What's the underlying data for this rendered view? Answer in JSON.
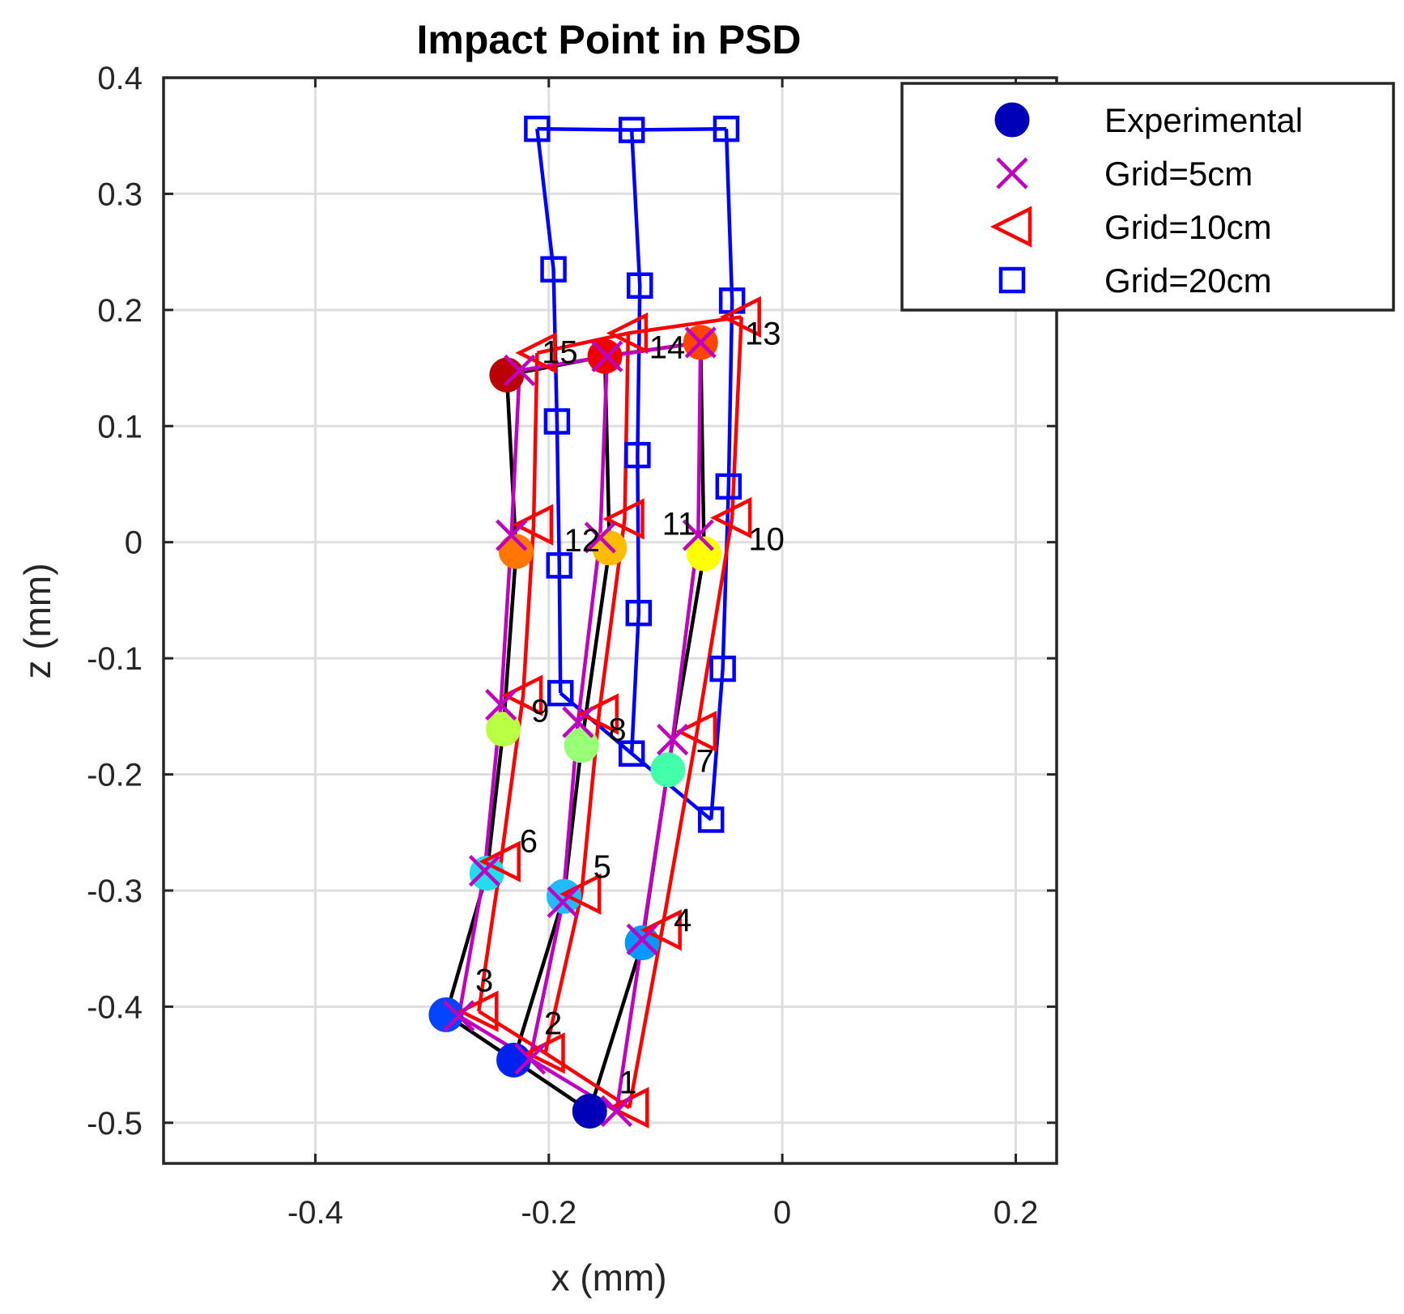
{
  "chart_data": {
    "type": "scatter",
    "title": "Impact Point in PSD",
    "xlabel": "x (mm)",
    "ylabel": "z (mm)",
    "xlim": [
      -0.53,
      0.235
    ],
    "ylim": [
      -0.535,
      0.4
    ],
    "xticks": [
      -0.4,
      -0.2,
      0,
      0.2
    ],
    "xtick_labels": [
      "-0.4",
      "-0.2",
      "0",
      "0.2"
    ],
    "yticks": [
      0.4,
      0.3,
      0.2,
      0.1,
      0,
      -0.1,
      -0.2,
      -0.3,
      -0.4,
      -0.5
    ],
    "ytick_labels": [
      "0.4",
      "0.3",
      "0.2",
      "0.1",
      "0",
      "-0.1",
      "-0.2",
      "-0.3",
      "-0.4",
      "-0.5"
    ],
    "grid": true,
    "legend_position": "outside top-right",
    "legend": [
      "Experimental",
      "Grid=5cm",
      "Grid=10cm",
      "Grid=20cm"
    ],
    "point_labels": [
      "1",
      "2",
      "3",
      "4",
      "5",
      "6",
      "7",
      "8",
      "9",
      "10",
      "11",
      "12",
      "13",
      "14",
      "15"
    ],
    "label_offsets": [
      [
        0.025,
        0.025
      ],
      [
        0.026,
        0.032
      ],
      [
        0.025,
        0.03
      ],
      [
        0.027,
        0.02
      ],
      [
        0.025,
        0.026
      ],
      [
        0.028,
        0.028
      ],
      [
        0.024,
        0.008
      ],
      [
        0.023,
        0.014
      ],
      [
        0.024,
        0.016
      ],
      [
        0.038,
        0.013
      ],
      [
        0.045,
        0.021
      ],
      [
        0.041,
        0.01
      ],
      [
        0.038,
        0.008
      ],
      [
        0.038,
        0.008
      ],
      [
        0.03,
        0.02
      ]
    ],
    "series": [
      {
        "name": "Experimental",
        "marker": "circle",
        "line_color": "#000000",
        "x": [
          -0.165,
          -0.23,
          -0.288,
          -0.12,
          -0.187,
          -0.253,
          -0.098,
          -0.172,
          -0.239,
          -0.067,
          -0.148,
          -0.228,
          -0.07,
          -0.152,
          -0.236
        ],
        "y": [
          -0.49,
          -0.446,
          -0.407,
          -0.345,
          -0.305,
          -0.285,
          -0.196,
          -0.175,
          -0.161,
          -0.01,
          -0.005,
          -0.008,
          0.172,
          0.16,
          0.144
        ],
        "point_colors": [
          "#0000b8",
          "#0022ee",
          "#0044ff",
          "#0099ff",
          "#22bbff",
          "#22ddee",
          "#44ffaa",
          "#99ff77",
          "#bbff44",
          "#ffff00",
          "#ffbb00",
          "#ff7700",
          "#ff4400",
          "#ee0000",
          "#bb0000"
        ]
      },
      {
        "name": "Grid=5cm",
        "marker": "x",
        "color": "#bf00bf",
        "x": [
          -0.142,
          -0.216,
          -0.277,
          -0.12,
          -0.188,
          -0.255,
          -0.094,
          -0.175,
          -0.241,
          -0.072,
          -0.156,
          -0.232,
          -0.07,
          -0.15,
          -0.225
        ],
        "y": [
          -0.49,
          -0.445,
          -0.408,
          -0.342,
          -0.31,
          -0.283,
          -0.17,
          -0.155,
          -0.14,
          0.006,
          0.004,
          0.006,
          0.172,
          0.16,
          0.148
        ]
      },
      {
        "name": "Grid=10cm",
        "marker": "triangle-left",
        "color": "#ff0000",
        "x": [
          -0.131,
          -0.203,
          -0.26,
          -0.103,
          -0.172,
          -0.241,
          -0.073,
          -0.157,
          -0.222,
          -0.043,
          -0.135,
          -0.213,
          -0.035,
          -0.132,
          -0.21
        ],
        "y": [
          -0.487,
          -0.44,
          -0.404,
          -0.334,
          -0.303,
          -0.275,
          -0.163,
          -0.148,
          -0.132,
          0.021,
          0.02,
          0.015,
          0.194,
          0.18,
          0.163
        ]
      },
      {
        "name": "Grid=20cm",
        "marker": "square",
        "color": "#0000ff",
        "x": [
          -0.061,
          -0.129,
          -0.19,
          -0.051,
          -0.123,
          -0.191,
          -0.046,
          -0.124,
          -0.193,
          -0.043,
          -0.122,
          -0.196,
          -0.048,
          -0.129,
          -0.21
        ],
        "y": [
          -0.239,
          -0.182,
          -0.13,
          -0.109,
          -0.061,
          -0.02,
          0.048,
          0.075,
          0.104,
          0.208,
          0.221,
          0.235,
          0.356,
          0.355,
          0.356
        ]
      }
    ],
    "grid_lines": {
      "Experimental": [
        [
          0,
          3,
          6,
          9,
          12
        ],
        [
          1,
          4,
          7,
          10,
          13
        ],
        [
          2,
          5,
          8,
          11,
          14
        ],
        [
          0,
          1,
          2
        ],
        [
          12,
          13,
          14
        ]
      ],
      "Grid=5cm": [
        [
          0,
          3,
          6,
          9,
          12
        ],
        [
          1,
          4,
          7,
          10,
          13
        ],
        [
          2,
          5,
          8,
          11,
          14
        ],
        [
          0,
          1,
          2
        ],
        [
          12,
          13,
          14
        ]
      ],
      "Grid=10cm": [
        [
          0,
          3,
          6,
          9,
          12
        ],
        [
          1,
          4,
          7,
          10,
          13
        ],
        [
          2,
          5,
          8,
          11,
          14
        ],
        [
          0,
          1,
          2
        ],
        [
          12,
          13,
          14
        ]
      ],
      "Grid=20cm": [
        [
          0,
          3,
          6,
          9,
          12
        ],
        [
          1,
          4,
          7,
          10,
          13
        ],
        [
          2,
          5,
          8,
          11,
          14
        ],
        [
          0,
          1,
          2
        ],
        [
          12,
          13,
          14
        ]
      ]
    },
    "legend_colors": {
      "Experimental": "#0000b8",
      "Grid=5cm": "#bf00bf",
      "Grid=10cm": "#ff0000",
      "Grid=20cm": "#0000ff"
    }
  }
}
